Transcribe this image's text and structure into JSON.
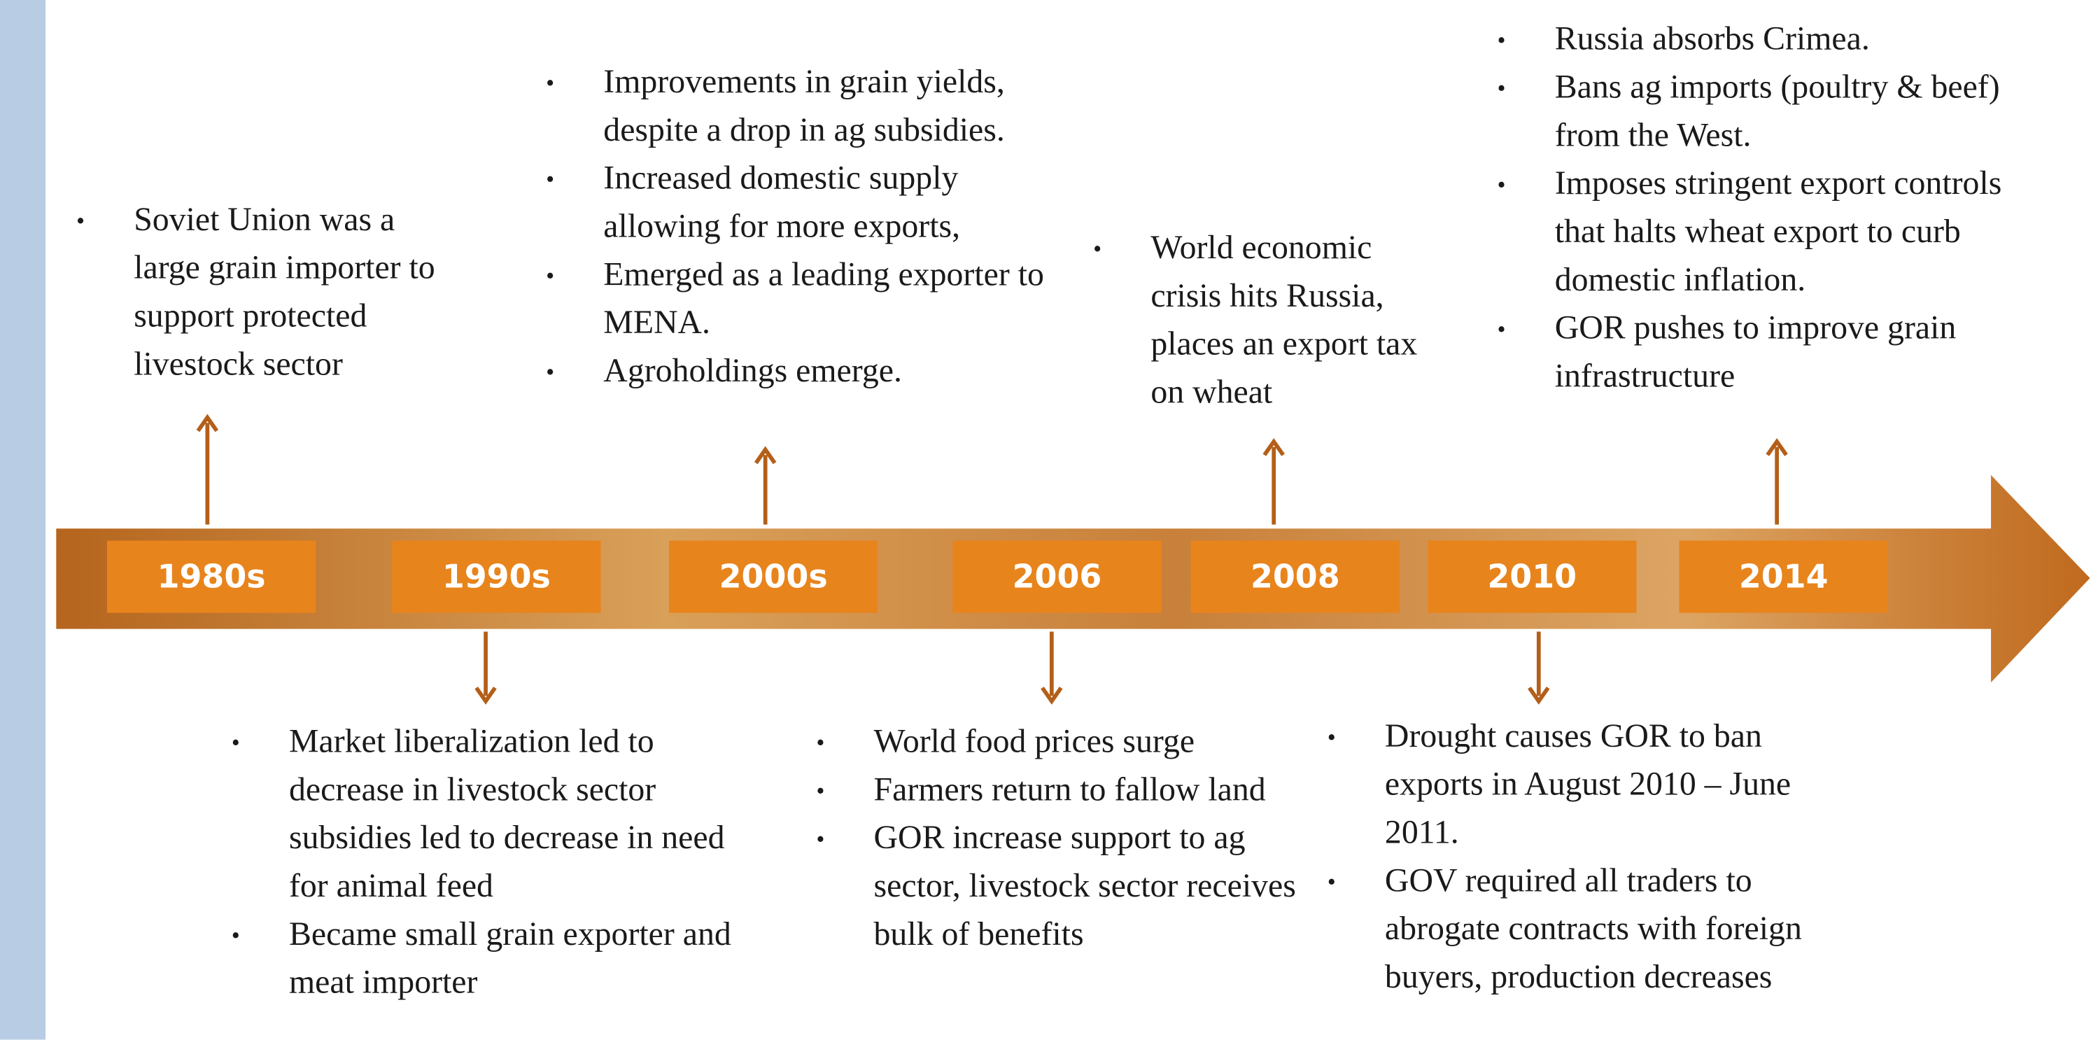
{
  "timeline": [
    {
      "label": "1980s",
      "bullets": [
        "Soviet Union was a large grain importer to support protected livestock sector"
      ]
    },
    {
      "label": "1990s",
      "bullets": [
        "Market liberalization led to decrease in livestock sector subsidies led to decrease in need for animal feed",
        "Became small grain exporter and meat importer"
      ]
    },
    {
      "label": "2000s",
      "bullets": [
        "Improvements in grain yields, despite a drop in ag subsidies.",
        "Increased domestic supply allowing for more exports,",
        "Emerged as a leading exporter to MENA.",
        "Agroholdings emerge."
      ]
    },
    {
      "label": "2006",
      "bullets": [
        "World food prices surge",
        "Farmers return to fallow land",
        "GOR increase support to ag sector, livestock sector receives bulk of benefits"
      ]
    },
    {
      "label": "2008",
      "bullets": [
        "World economic crisis hits Russia, places an export tax on wheat"
      ]
    },
    {
      "label": "2010",
      "bullets": [
        "Drought causes GOR to ban exports in August 2010 – June 2011.",
        "GOV required all traders to abrogate contracts with foreign buyers, production decreases"
      ]
    },
    {
      "label": "2014",
      "bullets": [
        "Russia absorbs Crimea.",
        "Bans ag imports (poultry & beef) from the West.",
        "Imposes stringent export controls that halts wheat export to curb domestic inflation.",
        "GOR pushes to improve grain infrastructure"
      ]
    }
  ]
}
